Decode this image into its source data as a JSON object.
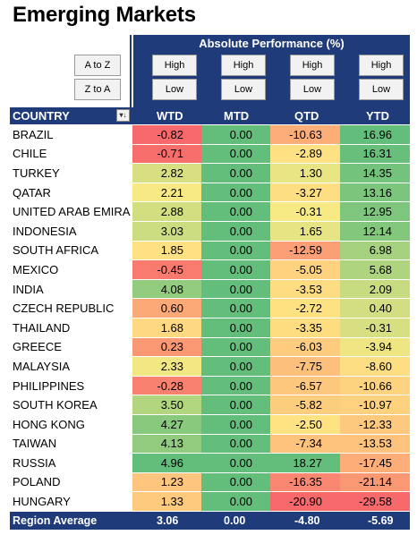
{
  "title": "Emerging Markets",
  "panel": {
    "abs_title": "Absolute Performance (%)",
    "sort_az": "A to Z",
    "sort_za": "Z to A",
    "high": "High",
    "low": "Low"
  },
  "header": {
    "country": "COUNTRY",
    "wtd": "WTD",
    "mtd": "MTD",
    "qtd": "QTD",
    "ytd": "YTD",
    "filter_icon": "sort-filter-icon"
  },
  "rows": [
    {
      "country": "BRAZIL",
      "wtd": "-0.82",
      "mtd": "0.00",
      "qtd": "-10.63",
      "ytd": "16.96"
    },
    {
      "country": "CHILE",
      "wtd": "-0.71",
      "mtd": "0.00",
      "qtd": "-2.89",
      "ytd": "16.31"
    },
    {
      "country": "TURKEY",
      "wtd": "2.82",
      "mtd": "0.00",
      "qtd": "1.30",
      "ytd": "14.35"
    },
    {
      "country": "QATAR",
      "wtd": "2.21",
      "mtd": "0.00",
      "qtd": "-3.27",
      "ytd": "13.16"
    },
    {
      "country": "UNITED ARAB EMIRA",
      "wtd": "2.88",
      "mtd": "0.00",
      "qtd": "-0.31",
      "ytd": "12.95"
    },
    {
      "country": "INDONESIA",
      "wtd": "3.03",
      "mtd": "0.00",
      "qtd": "1.65",
      "ytd": "12.14"
    },
    {
      "country": "SOUTH AFRICA",
      "wtd": "1.85",
      "mtd": "0.00",
      "qtd": "-12.59",
      "ytd": "6.98"
    },
    {
      "country": "MEXICO",
      "wtd": "-0.45",
      "mtd": "0.00",
      "qtd": "-5.05",
      "ytd": "5.68"
    },
    {
      "country": "INDIA",
      "wtd": "4.08",
      "mtd": "0.00",
      "qtd": "-3.53",
      "ytd": "2.09"
    },
    {
      "country": "CZECH REPUBLIC",
      "wtd": "0.60",
      "mtd": "0.00",
      "qtd": "-2.72",
      "ytd": "0.40"
    },
    {
      "country": "THAILAND",
      "wtd": "1.68",
      "mtd": "0.00",
      "qtd": "-3.35",
      "ytd": "-0.31"
    },
    {
      "country": "GREECE",
      "wtd": "0.23",
      "mtd": "0.00",
      "qtd": "-6.03",
      "ytd": "-3.94"
    },
    {
      "country": "MALAYSIA",
      "wtd": "2.33",
      "mtd": "0.00",
      "qtd": "-7.75",
      "ytd": "-8.60"
    },
    {
      "country": "PHILIPPINES",
      "wtd": "-0.28",
      "mtd": "0.00",
      "qtd": "-6.57",
      "ytd": "-10.66"
    },
    {
      "country": "SOUTH KOREA",
      "wtd": "3.50",
      "mtd": "0.00",
      "qtd": "-5.82",
      "ytd": "-10.97"
    },
    {
      "country": "HONG KONG",
      "wtd": "4.27",
      "mtd": "0.00",
      "qtd": "-2.50",
      "ytd": "-12.33"
    },
    {
      "country": "TAIWAN",
      "wtd": "4.13",
      "mtd": "0.00",
      "qtd": "-7.34",
      "ytd": "-13.53"
    },
    {
      "country": "RUSSIA",
      "wtd": "4.96",
      "mtd": "0.00",
      "qtd": "18.27",
      "ytd": "-17.45"
    },
    {
      "country": "POLAND",
      "wtd": "1.23",
      "mtd": "0.00",
      "qtd": "-16.35",
      "ytd": "-21.14"
    },
    {
      "country": "HUNGARY",
      "wtd": "1.33",
      "mtd": "0.00",
      "qtd": "-20.90",
      "ytd": "-29.58"
    }
  ],
  "footer": {
    "label": "Region Average",
    "wtd": "3.06",
    "mtd": "0.00",
    "qtd": "-4.80",
    "ytd": "-5.69"
  },
  "colors": {
    "header_bg": "#1f3b7a",
    "red": "#f8696b",
    "yellow": "#ffeb84",
    "green": "#63be7b"
  }
}
